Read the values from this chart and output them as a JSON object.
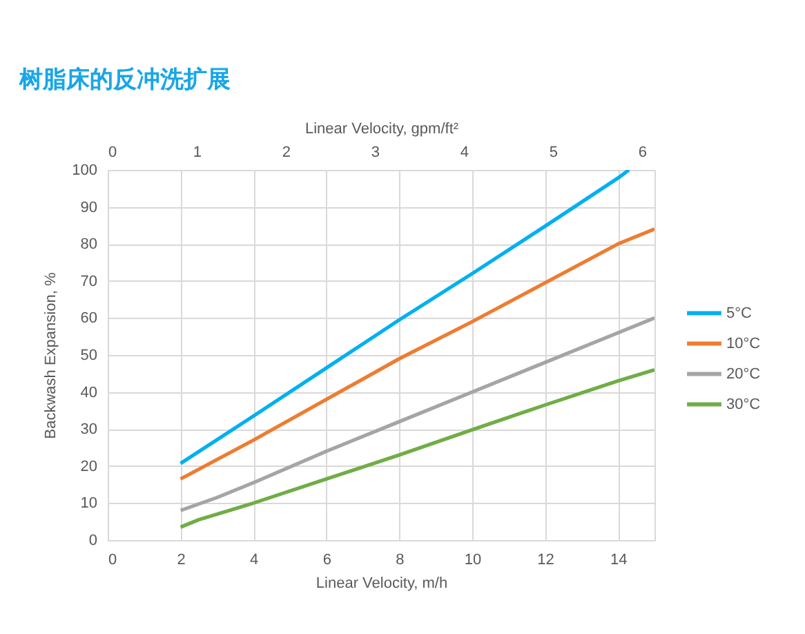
{
  "chart_data": {
    "type": "line",
    "title": "树脂床的反冲洗扩展",
    "xlabel": "Linear Velocity, m/h",
    "ylabel": "Backwash Expansion, %",
    "x2label": "Linear Velocity, gpm/ft²",
    "xlim": [
      0,
      15
    ],
    "xticks": [
      0,
      2,
      4,
      6,
      8,
      10,
      12,
      14
    ],
    "x2lim": [
      0,
      6.14
    ],
    "x2ticks": [
      0,
      1,
      2,
      3,
      4,
      5,
      6
    ],
    "ylim": [
      0,
      100
    ],
    "yticks": [
      0,
      10,
      20,
      30,
      40,
      50,
      60,
      70,
      80,
      90,
      100
    ],
    "grid": true,
    "legend": "right",
    "series": [
      {
        "name": "5°C",
        "color": "#00b0f0",
        "x": [
          2,
          4,
          6,
          8,
          10,
          12,
          14,
          14.3
        ],
        "values": [
          20.7,
          33.5,
          46.5,
          59.5,
          72,
          84.8,
          97.8,
          100
        ]
      },
      {
        "name": "10°C",
        "color": "#ed7d31",
        "x": [
          2,
          4,
          6,
          8,
          10,
          12,
          14,
          15
        ],
        "values": [
          16.5,
          27,
          38,
          49,
          59,
          69.5,
          80,
          84
        ]
      },
      {
        "name": "20°C",
        "color": "#a5a5a5",
        "x": [
          2,
          3,
          4,
          6,
          8,
          10,
          12,
          14,
          15
        ],
        "values": [
          8,
          11.5,
          15.5,
          24,
          32,
          40,
          48,
          56,
          60
        ]
      },
      {
        "name": "30°C",
        "color": "#70ad47",
        "x": [
          2,
          2.5,
          4,
          6,
          8,
          10,
          12,
          14,
          15
        ],
        "values": [
          3.5,
          5.5,
          10,
          16.5,
          23,
          29.8,
          36.5,
          43,
          46
        ]
      }
    ]
  }
}
